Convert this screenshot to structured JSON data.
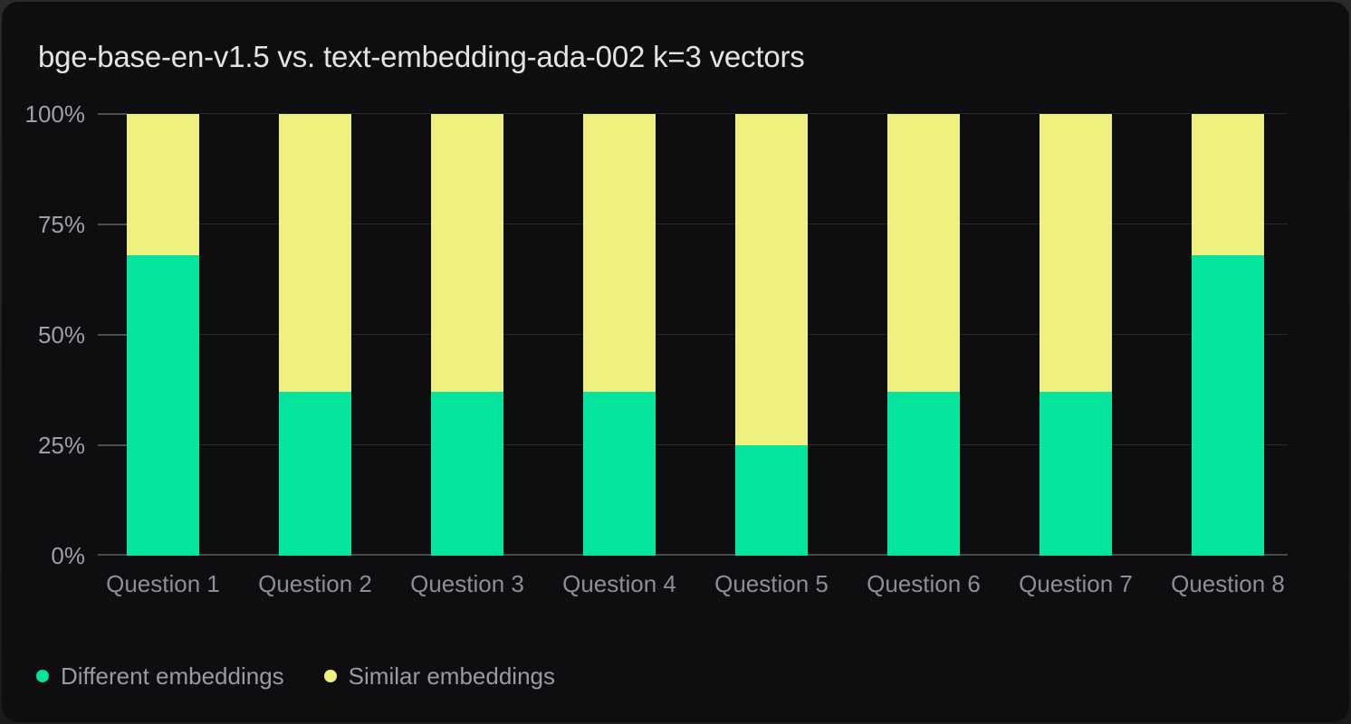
{
  "title": "bge-base-en-v1.5 vs. text-embedding-ada-002 k=3 vectors",
  "y_axis": {
    "tick_values": [
      0,
      25,
      50,
      75,
      100
    ],
    "tick_labels": [
      "0%",
      "25%",
      "50%",
      "75%",
      "100%"
    ]
  },
  "x_axis": {
    "categories": [
      "Question 1",
      "Question 2",
      "Question 3",
      "Question 4",
      "Question 5",
      "Question 6",
      "Question 7",
      "Question 8"
    ]
  },
  "legend": {
    "items": [
      {
        "label": "Different embeddings",
        "color": "#03e49c"
      },
      {
        "label": "Similar embeddings",
        "color": "#eef17d"
      }
    ]
  },
  "colors": {
    "card_background": "#0e0e10",
    "grid_line": "#29292b",
    "axis_baseline": "#48484a",
    "tick_mark": "#4e4e50",
    "title_text": "#e4e4e6",
    "axis_text": "#9fa0a4",
    "series_different": "#03e49c",
    "series_similar": "#eef17d"
  },
  "chart_data": {
    "type": "bar",
    "stacked": true,
    "unit": "percent",
    "title": "bge-base-en-v1.5 vs. text-embedding-ada-002 k=3 vectors",
    "categories": [
      "Question 1",
      "Question 2",
      "Question 3",
      "Question 4",
      "Question 5",
      "Question 6",
      "Question 7",
      "Question 8"
    ],
    "series": [
      {
        "name": "Different embeddings",
        "color": "#03e49c",
        "values": [
          68,
          37,
          37,
          37,
          25,
          37,
          37,
          68
        ]
      },
      {
        "name": "Similar embeddings",
        "color": "#eef17d",
        "values": [
          32,
          63,
          63,
          63,
          75,
          63,
          63,
          32
        ]
      }
    ],
    "xlabel": "",
    "ylabel": "",
    "ylim": [
      0,
      100
    ],
    "y_tick_labels": [
      "0%",
      "25%",
      "50%",
      "75%",
      "100%"
    ],
    "grid": true,
    "legend_position": "bottom-left"
  }
}
